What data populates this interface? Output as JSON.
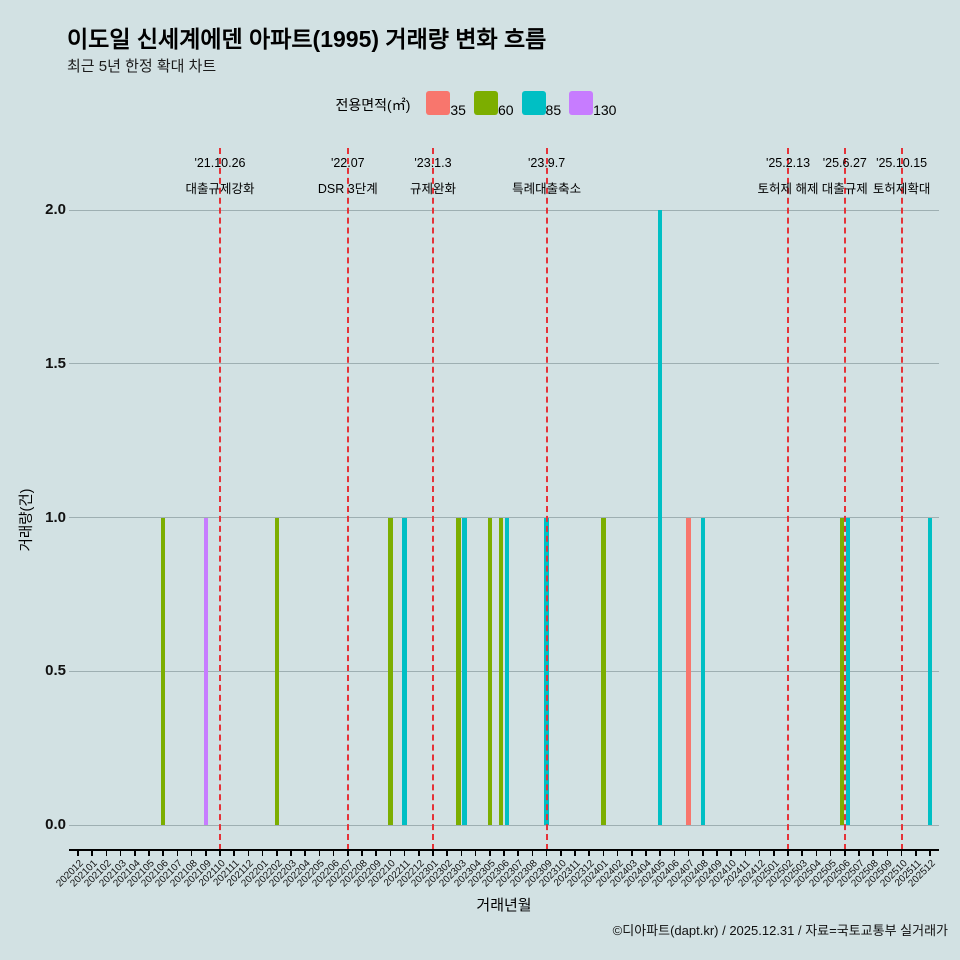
{
  "page": {
    "background": "#d2e1e3",
    "title": "이도일 신세계에덴 아파트(1995) 거래량 변화 흐름",
    "subtitle": "최근 5년 한정 확대 차트",
    "caption": "©디아파트(dapt.kr) / 2025.12.31 / 자료=국토교통부 실거래가"
  },
  "legend": {
    "title": "전용면적(㎡)",
    "items": [
      {
        "label": "35",
        "color": "#F8766D"
      },
      {
        "label": "60",
        "color": "#7CAE00"
      },
      {
        "label": "85",
        "color": "#00BFC4"
      },
      {
        "label": "130",
        "color": "#C77CFF"
      }
    ]
  },
  "chart_data": {
    "type": "bar",
    "title": "이도일 신세계에덴 아파트(1995) 거래량 변화 흐름",
    "subtitle": "최근 5년 한정 확대 차트",
    "xlabel": "거래년월",
    "ylabel": "거래량(건)",
    "ylim": [
      0,
      2
    ],
    "yticks": [
      "0.0",
      "0.5",
      "1.0",
      "1.5",
      "2.0"
    ],
    "grid": true,
    "legend_position": "top",
    "event_line_color": "#e53238",
    "categories": [
      "202012",
      "202101",
      "202102",
      "202103",
      "202104",
      "202105",
      "202106",
      "202107",
      "202108",
      "202109",
      "202110",
      "202111",
      "202112",
      "202201",
      "202202",
      "202203",
      "202204",
      "202205",
      "202206",
      "202207",
      "202208",
      "202209",
      "202210",
      "202211",
      "202212",
      "202301",
      "202302",
      "202303",
      "202304",
      "202305",
      "202306",
      "202307",
      "202308",
      "202309",
      "202310",
      "202311",
      "202312",
      "202401",
      "202402",
      "202403",
      "202404",
      "202405",
      "202406",
      "202407",
      "202408",
      "202409",
      "202410",
      "202411",
      "202412",
      "202501",
      "202502",
      "202503",
      "202504",
      "202505",
      "202506",
      "202507",
      "202508",
      "202509",
      "202510",
      "202511",
      "202512"
    ],
    "series": [
      {
        "name": "35",
        "color": "#F8766D",
        "points": [
          {
            "month": "202407",
            "value": 1
          }
        ]
      },
      {
        "name": "60",
        "color": "#7CAE00",
        "points": [
          {
            "month": "202106",
            "value": 1
          },
          {
            "month": "202202",
            "value": 1
          },
          {
            "month": "202210",
            "value": 1
          },
          {
            "month": "202303",
            "value": 1
          },
          {
            "month": "202305",
            "value": 1
          },
          {
            "month": "202306",
            "value": 1
          },
          {
            "month": "202401",
            "value": 1
          },
          {
            "month": "202506",
            "value": 1
          }
        ]
      },
      {
        "name": "85",
        "color": "#00BFC4",
        "points": [
          {
            "month": "202211",
            "value": 1
          },
          {
            "month": "202303",
            "value": 1
          },
          {
            "month": "202306",
            "value": 1
          },
          {
            "month": "202309",
            "value": 1
          },
          {
            "month": "202405",
            "value": 2
          },
          {
            "month": "202408",
            "value": 1
          },
          {
            "month": "202506",
            "value": 1
          },
          {
            "month": "202512",
            "value": 1
          }
        ]
      },
      {
        "name": "130",
        "color": "#C77CFF",
        "points": [
          {
            "month": "202109",
            "value": 1
          }
        ]
      }
    ],
    "events": [
      {
        "date": "'21.10.26",
        "label": "대출규제강화",
        "month": "202110"
      },
      {
        "date": "'22.07",
        "label": "DSR 3단계",
        "month": "202207"
      },
      {
        "date": "'23.1.3",
        "label": "규제완화",
        "month": "202301"
      },
      {
        "date": "'23.9.7",
        "label": "특례대출축소",
        "month": "202309"
      },
      {
        "date": "'25.2.13",
        "label": "토허제 해제",
        "month": "202502"
      },
      {
        "date": "'25.6.27",
        "label": "대출규제",
        "month": "202506"
      },
      {
        "date": "'25.10.15",
        "label": "토허제확대",
        "month": "202510"
      }
    ]
  }
}
